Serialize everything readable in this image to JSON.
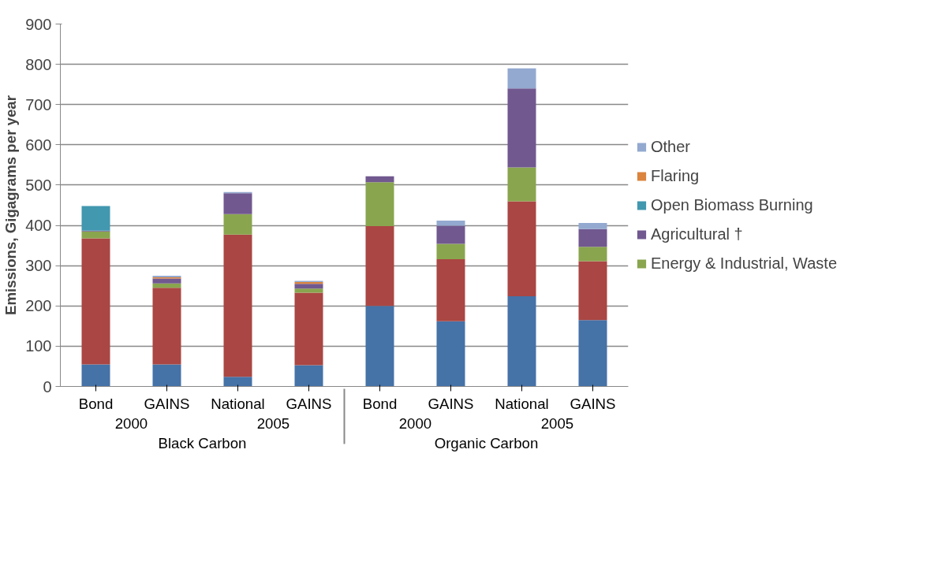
{
  "chart_data": {
    "type": "bar",
    "stacked": true,
    "ylabel": "Emissions, Gigagrams per year",
    "categories": [
      "Bond",
      "GAINS",
      "National",
      "GAINS",
      "Bond",
      "GAINS",
      "National",
      "GAINS"
    ],
    "annotations": [
      "2000",
      "2005",
      "2000",
      "2005",
      "Black Carbon",
      "Organic Carbon"
    ],
    "series": [
      {
        "color": "#4572a7",
        "values": [
          55,
          55,
          24,
          53,
          200,
          162,
          224,
          165
        ]
      },
      {
        "color": "#aa4643",
        "values": [
          313,
          190,
          353,
          180,
          198,
          154,
          236,
          146
        ]
      },
      {
        "name": "Energy & Industrial, Waste",
        "color": "#89a54e",
        "values": [
          17,
          11,
          51,
          10,
          109,
          38,
          84,
          36
        ]
      },
      {
        "name": "Agricultural †",
        "color": "#71588f",
        "values": [
          2,
          12,
          52,
          12,
          15,
          45,
          196,
          44
        ]
      },
      {
        "name": "Open Biomass Burning",
        "color": "#4198af",
        "values": [
          61,
          0,
          0,
          0,
          0,
          0,
          0,
          0
        ]
      },
      {
        "name": "Flaring",
        "color": "#db843d",
        "values": [
          0,
          3,
          0,
          4,
          0,
          0,
          0,
          0
        ]
      },
      {
        "name": "Other",
        "color": "#93a9cf",
        "values": [
          0,
          4,
          3,
          3,
          0,
          13,
          50,
          15
        ]
      }
    ],
    "ylim": [
      0,
      900
    ],
    "yticks": [
      0,
      100,
      200,
      300,
      400,
      500,
      600,
      700,
      800,
      900
    ],
    "grid": "y",
    "legend": "right"
  }
}
